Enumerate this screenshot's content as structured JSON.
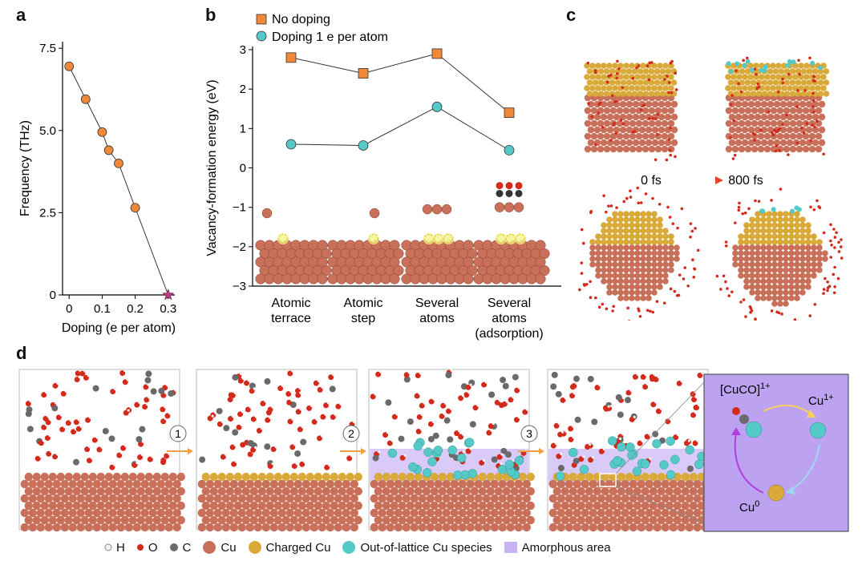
{
  "panels": {
    "a": "a",
    "b": "b",
    "c": "c",
    "d": "d"
  },
  "colors": {
    "orange": "#f0883a",
    "teal": "#55c8c8",
    "cu": "#c9705a",
    "charged_cu": "#d9a93a",
    "o": "#d42a1c",
    "c": "#6a6a6a",
    "h": "#f2f2f2",
    "amorphous": "#c9b3f5",
    "purple_box": "#bca2f0",
    "star": "#c13a8a"
  },
  "chart_data": [
    {
      "type": "line",
      "panel": "a",
      "xlabel": "Doping (e per atom)",
      "ylabel": "Frequency (THz)",
      "x_ticks": [
        "0",
        "0.1",
        "0.2",
        "0.3"
      ],
      "y_ticks": [
        "0",
        "2.5",
        "5.0",
        "7.5"
      ],
      "xlim": [
        -0.02,
        0.32
      ],
      "ylim": [
        0,
        7.7
      ],
      "x": [
        0,
        0.05,
        0.1,
        0.12,
        0.15,
        0.2,
        0.3
      ],
      "y": [
        6.95,
        5.95,
        4.95,
        4.4,
        4.0,
        2.65,
        0
      ],
      "last_marker": "star"
    },
    {
      "type": "line",
      "panel": "b",
      "ylabel": "Vacancy-formation energy (eV)",
      "y_ticks": [
        "−3",
        "−2",
        "−1",
        "0",
        "1",
        "2",
        "3"
      ],
      "ylim": [
        -3,
        3.2
      ],
      "categories": [
        "Atomic terrace",
        "Atomic step",
        "Several atoms",
        "Several atoms (adsorption)"
      ],
      "category_lines": [
        [
          "Atomic",
          "terrace"
        ],
        [
          "Atomic",
          "step"
        ],
        [
          "Several",
          "atoms"
        ],
        [
          "Several",
          "atoms",
          "(adsorption)"
        ]
      ],
      "legend_position": "top-left",
      "series": [
        {
          "name": "No doping",
          "marker": "square",
          "values": [
            2.8,
            2.4,
            2.9,
            1.4
          ]
        },
        {
          "name": "Doping 1 e per atom",
          "marker": "circle",
          "values": [
            0.6,
            0.57,
            1.55,
            0.45
          ]
        }
      ]
    }
  ],
  "panel_c": {
    "time_start": "0 fs",
    "time_end": "800 fs"
  },
  "panel_d": {
    "steps": [
      "1",
      "2",
      "3"
    ],
    "cycle": {
      "species_top": "[CuCO]",
      "species_top_sup": "1+",
      "species_right": "Cu",
      "species_right_sup": "1+",
      "species_bottom": "Cu",
      "species_bottom_sup": "0"
    }
  },
  "legend": {
    "h": "H",
    "o": "O",
    "c": "C",
    "cu": "Cu",
    "charged_cu": "Charged Cu",
    "out_of_lattice": "Out-of-lattice Cu species",
    "amorphous": "Amorphous area"
  }
}
